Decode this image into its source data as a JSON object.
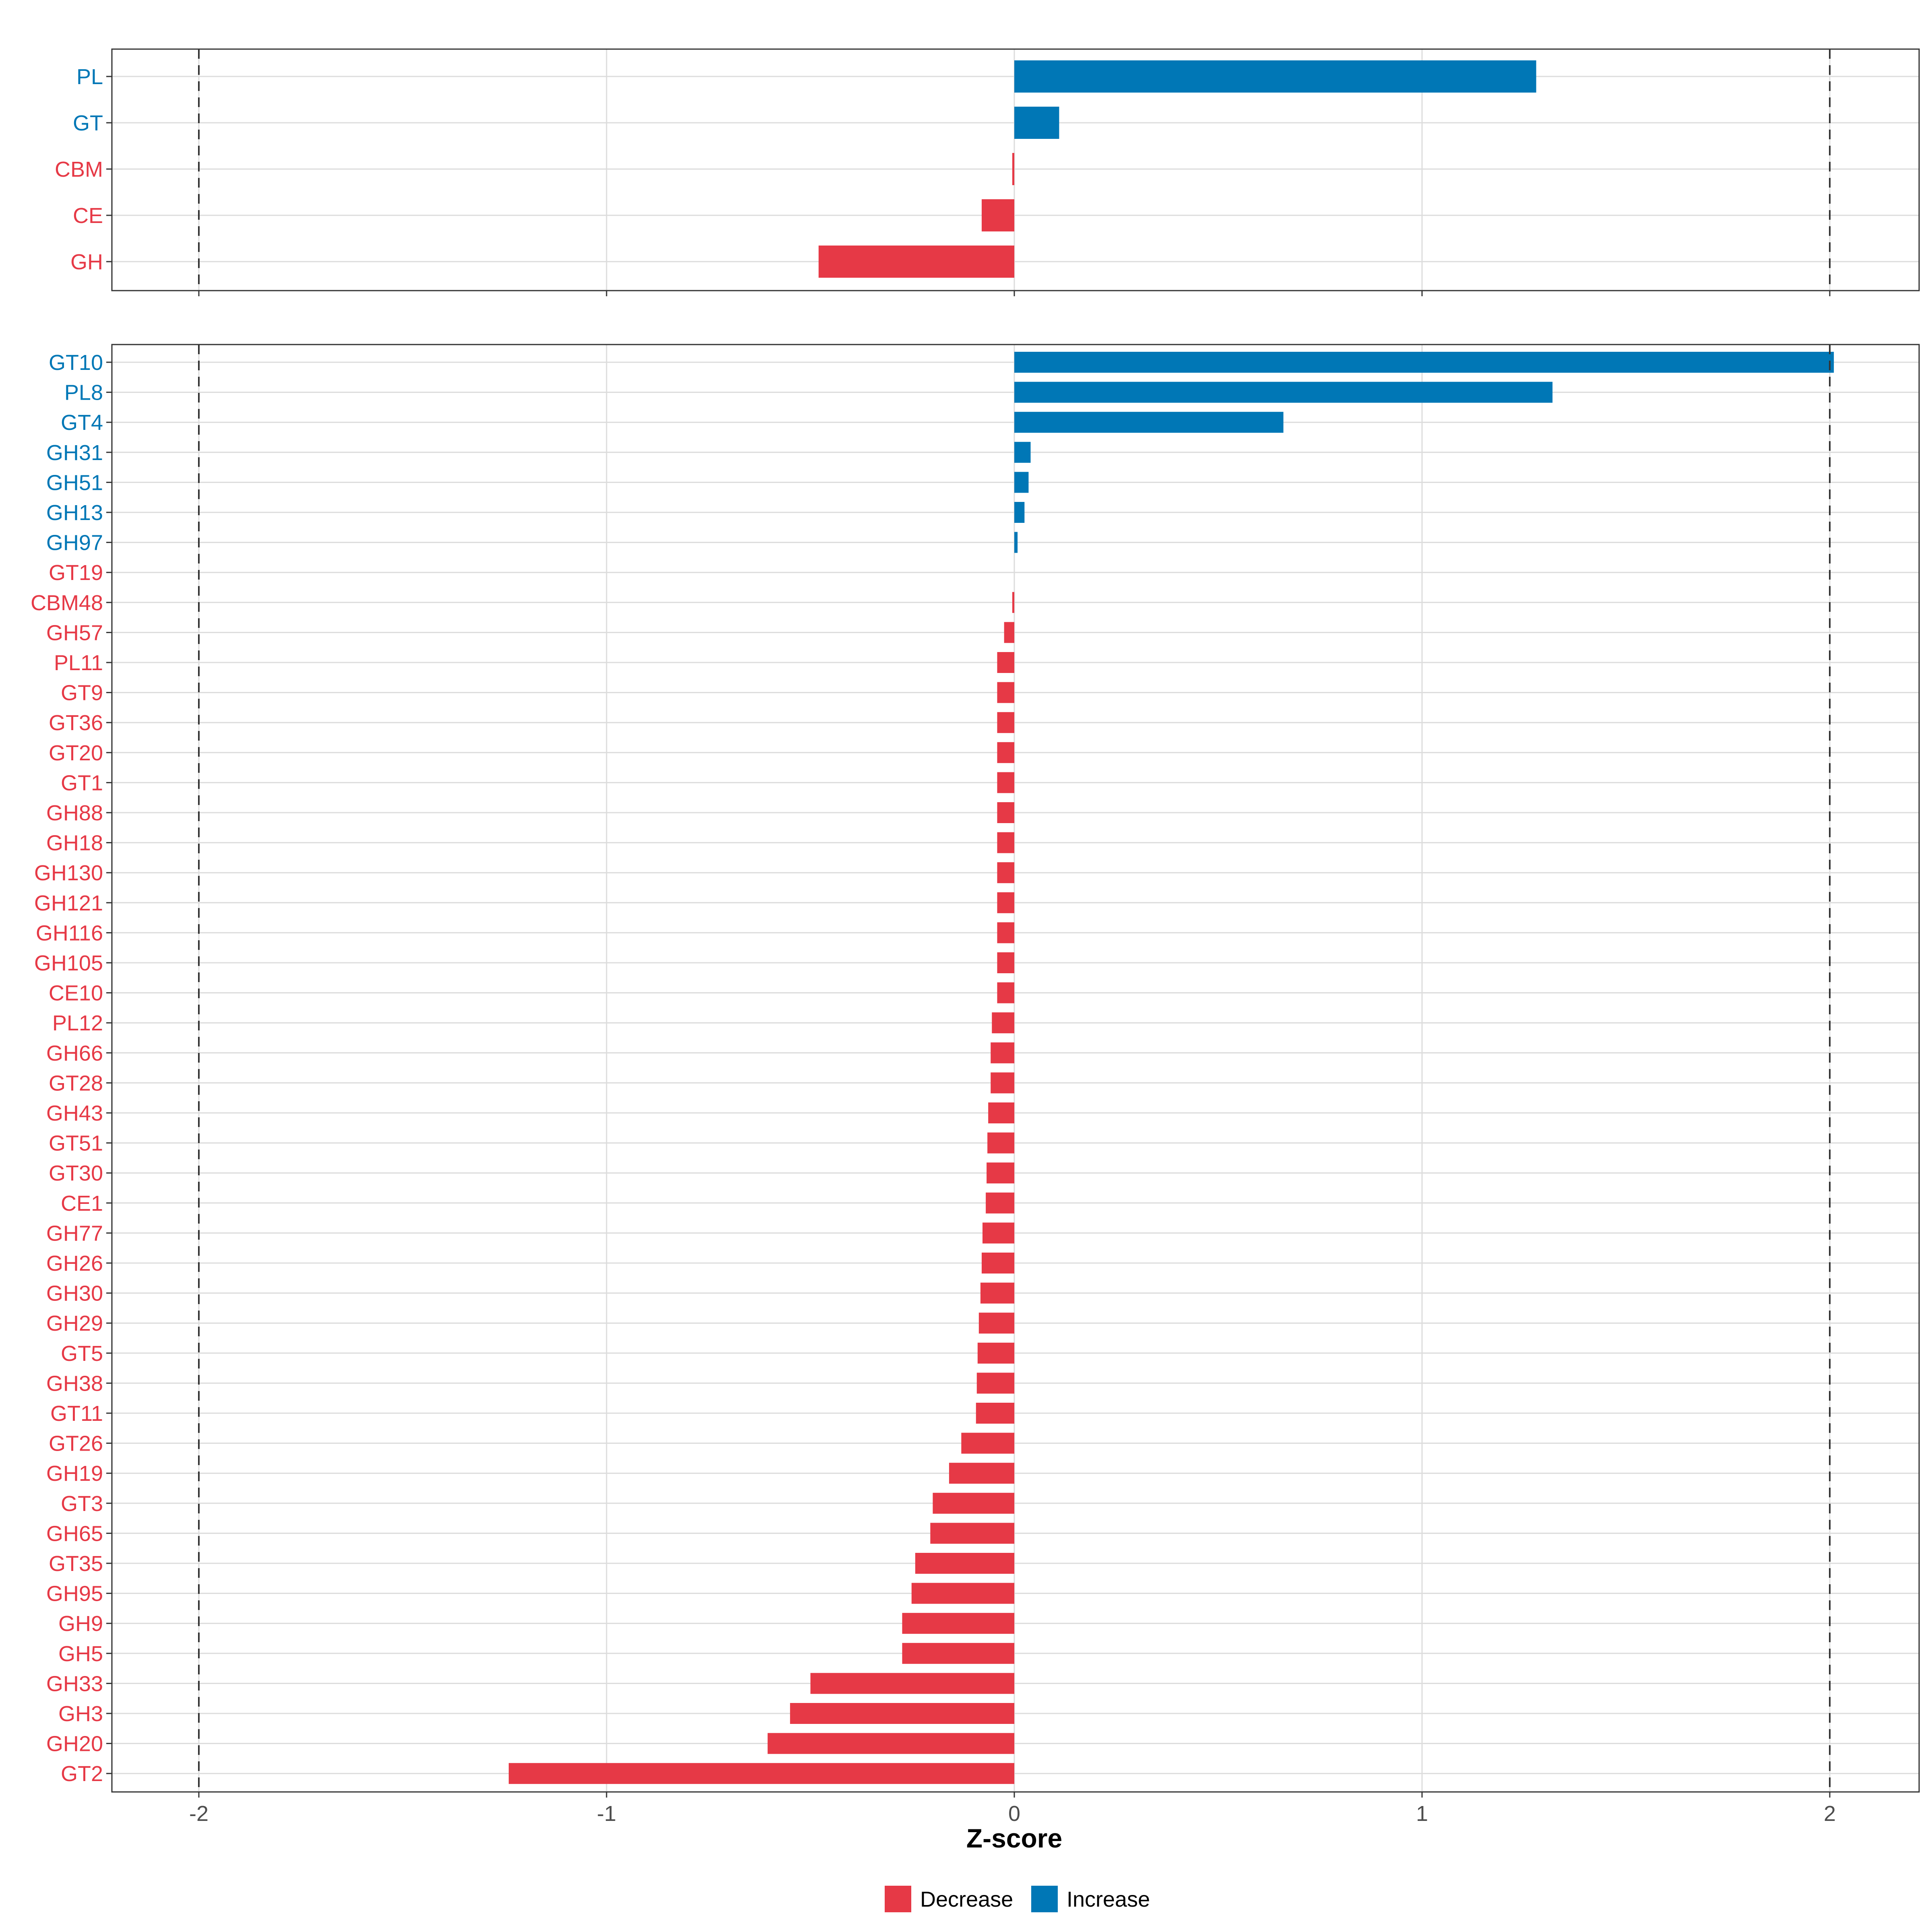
{
  "chart_data": {
    "type": "bar",
    "orientation": "horizontal",
    "xlabel": "Z-score",
    "xlim": [
      -2.2,
      2.2
    ],
    "x_ticks": [
      -2,
      -1,
      0,
      1,
      2
    ],
    "x_tick_labels": [
      "-2",
      "-1",
      "0",
      "1",
      "2"
    ],
    "reference_lines": [
      -2,
      2
    ],
    "grid": true,
    "legend_position": "bottom",
    "legend": [
      {
        "name": "Decrease",
        "color": "#E63946"
      },
      {
        "name": "Increase",
        "color": "#0077B6"
      }
    ],
    "colors": {
      "Decrease": "#E63946",
      "Increase": "#0077B6"
    },
    "panels": [
      {
        "name": "families",
        "categories": [
          "PL",
          "GT",
          "CBM",
          "CE",
          "GH"
        ],
        "values": [
          1.28,
          0.11,
          -0.005,
          -0.08,
          -0.48
        ],
        "direction": [
          "Increase",
          "Increase",
          "Decrease",
          "Decrease",
          "Decrease"
        ]
      },
      {
        "name": "subfamilies",
        "categories": [
          "GT10",
          "PL8",
          "GT4",
          "GH31",
          "GH51",
          "GH13",
          "GH97",
          "GT19",
          "CBM48",
          "GH57",
          "PL11",
          "GT9",
          "GT36",
          "GT20",
          "GT1",
          "GH88",
          "GH18",
          "GH130",
          "GH121",
          "GH116",
          "GH105",
          "CE10",
          "PL12",
          "GH66",
          "GT28",
          "GH43",
          "GT51",
          "GT30",
          "CE1",
          "GH77",
          "GH26",
          "GH30",
          "GH29",
          "GT5",
          "GH38",
          "GT11",
          "GT26",
          "GH19",
          "GT3",
          "GH65",
          "GT35",
          "GH95",
          "GH9",
          "GH5",
          "GH33",
          "GH3",
          "GH20",
          "GT2"
        ],
        "values": [
          2.01,
          1.32,
          0.66,
          0.04,
          0.035,
          0.025,
          0.008,
          0.0,
          -0.005,
          -0.025,
          -0.042,
          -0.042,
          -0.042,
          -0.042,
          -0.042,
          -0.042,
          -0.042,
          -0.042,
          -0.042,
          -0.042,
          -0.042,
          -0.042,
          -0.055,
          -0.058,
          -0.058,
          -0.064,
          -0.066,
          -0.068,
          -0.07,
          -0.078,
          -0.08,
          -0.083,
          -0.087,
          -0.09,
          -0.092,
          -0.094,
          -0.13,
          -0.16,
          -0.2,
          -0.206,
          -0.243,
          -0.252,
          -0.275,
          -0.275,
          -0.5,
          -0.55,
          -0.605,
          -1.24
        ],
        "direction": [
          "Increase",
          "Increase",
          "Increase",
          "Increase",
          "Increase",
          "Increase",
          "Increase",
          "Decrease",
          "Decrease",
          "Decrease",
          "Decrease",
          "Decrease",
          "Decrease",
          "Decrease",
          "Decrease",
          "Decrease",
          "Decrease",
          "Decrease",
          "Decrease",
          "Decrease",
          "Decrease",
          "Decrease",
          "Decrease",
          "Decrease",
          "Decrease",
          "Decrease",
          "Decrease",
          "Decrease",
          "Decrease",
          "Decrease",
          "Decrease",
          "Decrease",
          "Decrease",
          "Decrease",
          "Decrease",
          "Decrease",
          "Decrease",
          "Decrease",
          "Decrease",
          "Decrease",
          "Decrease",
          "Decrease",
          "Decrease",
          "Decrease",
          "Decrease",
          "Decrease",
          "Decrease",
          "Decrease"
        ]
      }
    ]
  }
}
